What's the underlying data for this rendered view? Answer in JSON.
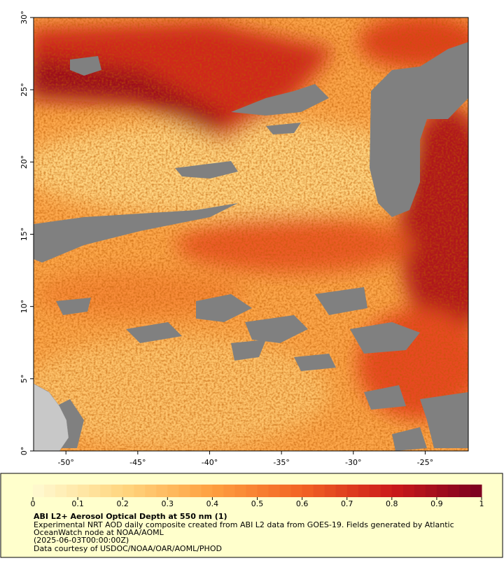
{
  "map": {
    "xlim": [
      -52.25,
      -22.0
    ],
    "ylim": [
      0,
      30
    ],
    "xticks": [
      {
        "value": -50,
        "label": "-50°"
      },
      {
        "value": -45,
        "label": "-45°"
      },
      {
        "value": -40,
        "label": "-40°"
      },
      {
        "value": -35,
        "label": "-35°"
      },
      {
        "value": -30,
        "label": "-30°"
      },
      {
        "value": -25,
        "label": "-25°"
      }
    ],
    "yticks": [
      {
        "value": 0,
        "label": "0°"
      },
      {
        "value": 5,
        "label": "5°"
      },
      {
        "value": 10,
        "label": "10°"
      },
      {
        "value": 15,
        "label": "15°"
      },
      {
        "value": 20,
        "label": "20°"
      },
      {
        "value": 25,
        "label": "25°"
      },
      {
        "value": 30,
        "label": "30°"
      }
    ],
    "colorbar": {
      "range": [
        0,
        1
      ],
      "ticks": [
        0,
        0.1,
        0.2,
        0.3,
        0.4,
        0.5,
        0.6,
        0.7,
        0.8,
        0.9,
        1
      ],
      "colors": [
        "#fffad2",
        "#ffd680",
        "#fea040",
        "#f26224",
        "#cc1a1a",
        "#7a0020"
      ]
    },
    "title": "ABI L2+ Aerosol Optical Depth at 550 nm (1)",
    "notes": [
      "Experimental NRT AOD daily composite created from ABI L2 data from GOES-19. Fields generated by Atlantic",
      "OceanWatch node at NOAA/AOML",
      "(2025-06-03T00:00:00Z)",
      "Data courtesy of USDOC/NOAA/OAR/AOML/PHOD"
    ]
  }
}
